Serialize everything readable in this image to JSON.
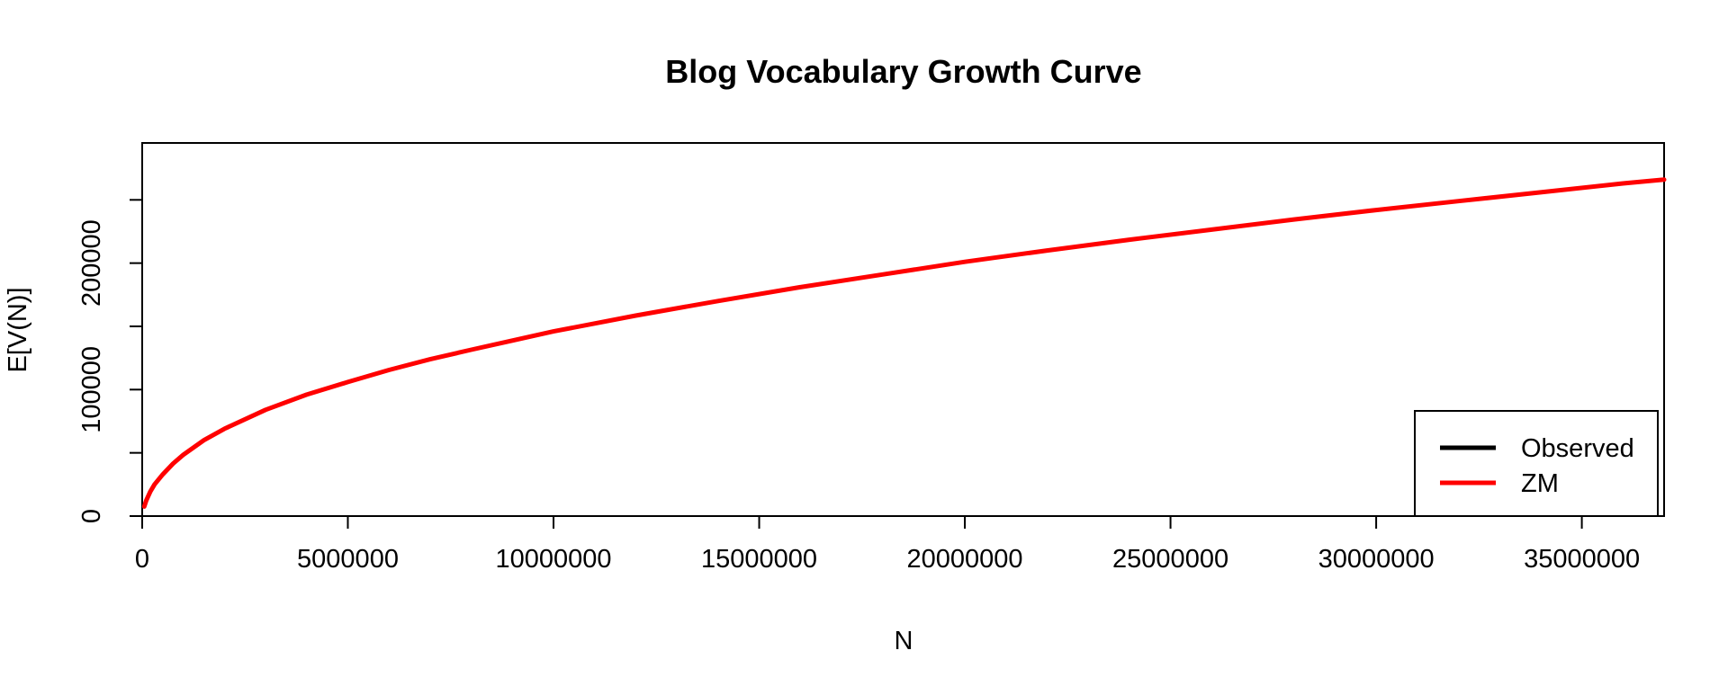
{
  "chart_data": {
    "type": "line",
    "title": "Blog Vocabulary Growth Curve",
    "xlabel": "N",
    "ylabel": "E[V(N)]",
    "xlim": [
      0,
      37000000
    ],
    "ylim": [
      0,
      295000
    ],
    "x_ticks": [
      0,
      5000000,
      10000000,
      15000000,
      20000000,
      25000000,
      30000000,
      35000000
    ],
    "x_tick_labels": [
      "0",
      "5000000",
      "10000000",
      "15000000",
      "20000000",
      "25000000",
      "30000000",
      "35000000"
    ],
    "y_ticks": [
      0,
      50000,
      100000,
      150000,
      200000,
      250000
    ],
    "y_tick_labels": [
      "0",
      "",
      "100000",
      "",
      "200000",
      ""
    ],
    "grid": false,
    "legend": {
      "position": "bottom-right",
      "entries": [
        "Observed",
        "ZM"
      ]
    },
    "series": [
      {
        "name": "Observed",
        "color": "#000000",
        "x": [
          50000,
          100000,
          200000,
          300000,
          500000,
          750000,
          1000000,
          1500000,
          2000000,
          3000000,
          4000000,
          5000000,
          6000000,
          7000000,
          8000000,
          10000000,
          12000000,
          14000000,
          16000000,
          18000000,
          20000000,
          22000000,
          24000000,
          26000000,
          28000000,
          30000000,
          32000000,
          34000000,
          36000000,
          37000000
        ],
        "y": [
          7500,
          12500,
          19500,
          25000,
          33000,
          41500,
          48500,
          60000,
          69000,
          84000,
          96000,
          106000,
          115500,
          124000,
          131500,
          146000,
          158500,
          170000,
          181000,
          191000,
          201000,
          210000,
          218500,
          226500,
          234500,
          242000,
          249000,
          256000,
          263000,
          266000
        ]
      },
      {
        "name": "ZM",
        "color": "#ff0000",
        "x": [
          50000,
          100000,
          200000,
          300000,
          500000,
          750000,
          1000000,
          1500000,
          2000000,
          3000000,
          4000000,
          5000000,
          6000000,
          7000000,
          8000000,
          10000000,
          12000000,
          14000000,
          16000000,
          18000000,
          20000000,
          22000000,
          24000000,
          26000000,
          28000000,
          30000000,
          32000000,
          34000000,
          36000000,
          37000000
        ],
        "y": [
          7500,
          12500,
          19500,
          25000,
          33000,
          41500,
          48500,
          60000,
          69000,
          84000,
          96000,
          106000,
          115500,
          124000,
          131500,
          146000,
          158500,
          170000,
          181000,
          191000,
          201000,
          210000,
          218500,
          226500,
          234500,
          242000,
          249000,
          256000,
          263000,
          266000
        ]
      }
    ]
  }
}
